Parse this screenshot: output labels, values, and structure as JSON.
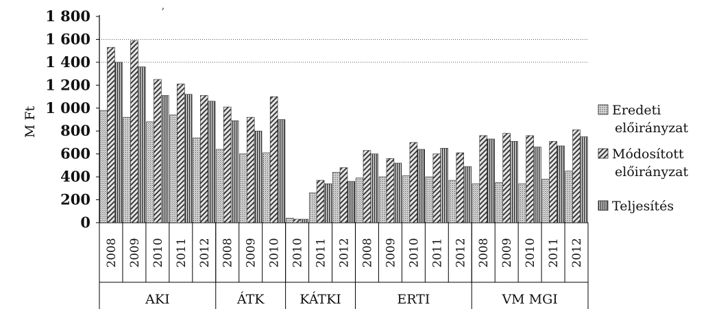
{
  "chart_data": {
    "type": "bar",
    "ylabel": "M Ft",
    "ylim": [
      0,
      1800
    ],
    "yticks": [
      0,
      200,
      400,
      600,
      800,
      1000,
      1200,
      1400,
      1600,
      1800
    ],
    "ytick_labels": [
      "0",
      "200",
      "400",
      "600",
      "800",
      "1 000",
      "1 200",
      "1 400",
      "1 600",
      "1 800"
    ],
    "gridlines": [
      1400,
      1600
    ],
    "legend_position": "right",
    "groups": [
      {
        "name": "AKI",
        "years": [
          "2008",
          "2009",
          "2010",
          "2011",
          "2012"
        ]
      },
      {
        "name": "ÁTK",
        "years": [
          "2008",
          "2009",
          "2010"
        ]
      },
      {
        "name": "KÁTKI",
        "years": [
          "2010",
          "2011",
          "2012"
        ]
      },
      {
        "name": "ERTI",
        "years": [
          "2008",
          "2009",
          "2010",
          "2011",
          "2012"
        ]
      },
      {
        "name": "VM MGI",
        "years": [
          "2008",
          "2009",
          "2010",
          "2011",
          "2012"
        ]
      }
    ],
    "series": [
      {
        "name": "Eredeti előirányzat",
        "legend_lines": [
          "Eredeti",
          "előirányzat"
        ],
        "pattern": "dots",
        "values": [
          980,
          920,
          880,
          940,
          740,
          640,
          600,
          610,
          40,
          260,
          440,
          390,
          400,
          410,
          400,
          370,
          340,
          350,
          340,
          380,
          450
        ]
      },
      {
        "name": "Módosított előirányzat",
        "legend_lines": [
          "Módosított",
          "előirányzat"
        ],
        "pattern": "diagonal",
        "values": [
          1530,
          1590,
          1250,
          1210,
          1110,
          1010,
          920,
          1100,
          30,
          370,
          480,
          630,
          560,
          700,
          600,
          610,
          760,
          780,
          760,
          710,
          810
        ]
      },
      {
        "name": "Teljesítés",
        "legend_lines": [
          "Teljesítés"
        ],
        "pattern": "vertical",
        "values": [
          1400,
          1360,
          1110,
          1120,
          1060,
          890,
          800,
          900,
          30,
          340,
          360,
          600,
          520,
          640,
          650,
          490,
          730,
          710,
          660,
          670,
          750
        ]
      }
    ]
  },
  "stray_mark": "ʼ"
}
